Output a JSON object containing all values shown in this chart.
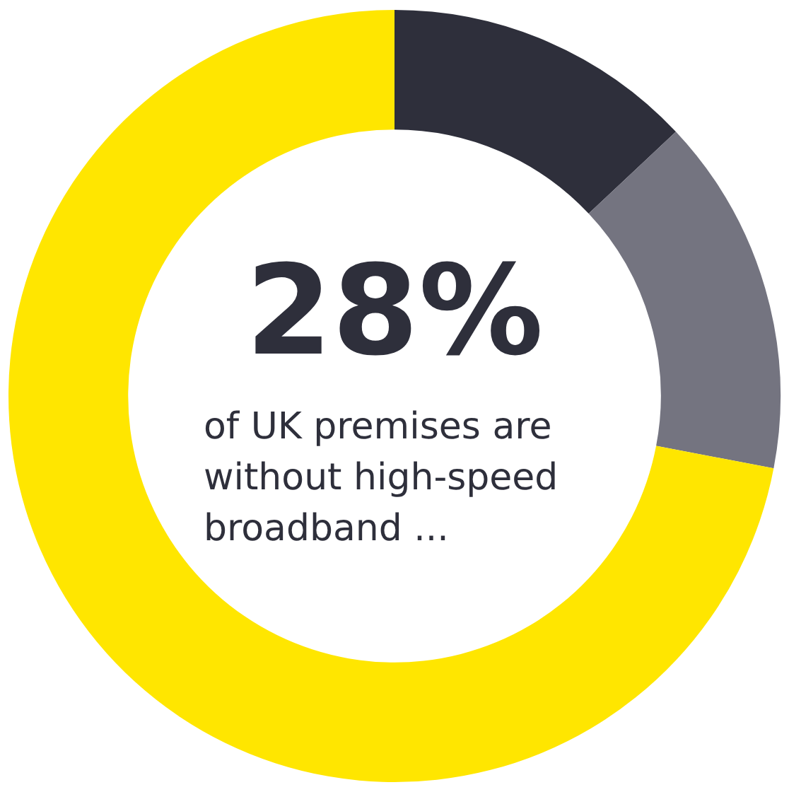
{
  "chart_data": {
    "type": "donut",
    "categories": [
      null,
      null,
      null
    ],
    "values": [
      13,
      15,
      72
    ],
    "colors": [
      "#2e2f3b",
      "#747480",
      "#ffe600"
    ],
    "annotations": [
      "28%",
      "of UK premises are without high-speed broadband ..."
    ]
  }
}
